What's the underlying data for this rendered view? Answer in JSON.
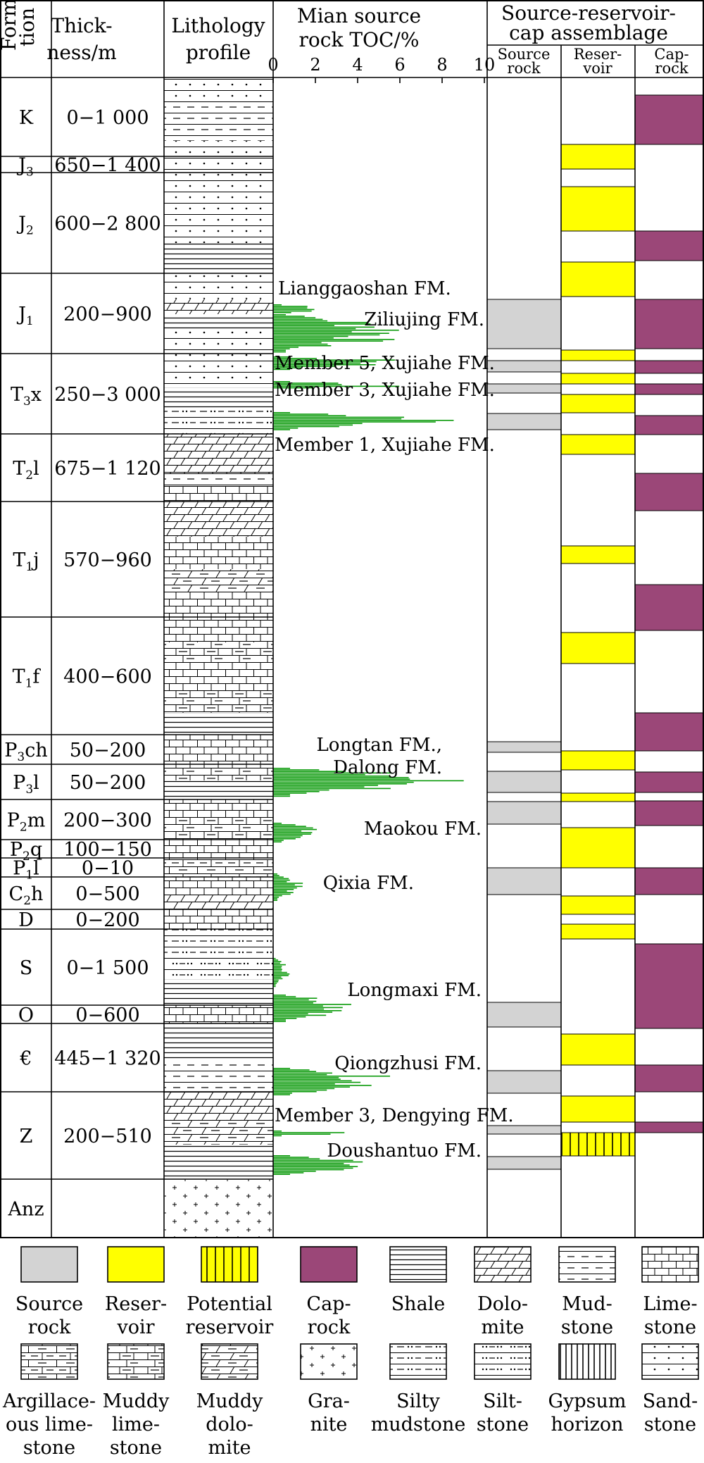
{
  "headers": {
    "formation_line1": "Forma-",
    "formation_line2": "tion",
    "thickness_line1": "Thick-",
    "thickness_line2": "ness/m",
    "lithology_line1": "Lithology",
    "lithology_line2": "profile",
    "toc_line1": "Mian source",
    "toc_line2": "rock TOC/%",
    "srca_line1": "Source-reservoir-",
    "srca_line2": "cap assemblage",
    "sub_source_1": "Source",
    "sub_source_2": "rock",
    "sub_reservoir_1": "Reser-",
    "sub_reservoir_2": "voir",
    "sub_cap_1": "Cap-",
    "sub_cap_2": "rock"
  },
  "toc_axis": {
    "ticks": [
      "0",
      "2",
      "4",
      "6",
      "8",
      "10"
    ],
    "min": 0,
    "max": 10
  },
  "formations": [
    {
      "name": "K",
      "base": "K",
      "sub": "",
      "post": "",
      "thickness": "0−1 000"
    },
    {
      "name": "J3",
      "base": "J",
      "sub": "3",
      "post": "",
      "thickness": "650−1 400"
    },
    {
      "name": "J2",
      "base": "J",
      "sub": "2",
      "post": "",
      "thickness": "600−2 800"
    },
    {
      "name": "J1",
      "base": "J",
      "sub": "1",
      "post": "",
      "thickness": "200−900"
    },
    {
      "name": "T3x",
      "base": "T",
      "sub": "3",
      "post": "x",
      "thickness": "250−3 000"
    },
    {
      "name": "T2l",
      "base": "T",
      "sub": "2",
      "post": "l",
      "thickness": "675−1 120"
    },
    {
      "name": "T1j",
      "base": "T",
      "sub": "1",
      "post": "j",
      "thickness": "570−960"
    },
    {
      "name": "T1f",
      "base": "T",
      "sub": "1",
      "post": "f",
      "thickness": "400−600"
    },
    {
      "name": "P3ch",
      "base": "P",
      "sub": "3",
      "post": "ch",
      "thickness": "50−200"
    },
    {
      "name": "P3l",
      "base": "P",
      "sub": "3",
      "post": "l",
      "thickness": "50−200"
    },
    {
      "name": "P2m",
      "base": "P",
      "sub": "2",
      "post": "m",
      "thickness": "200−300"
    },
    {
      "name": "P2q",
      "base": "P",
      "sub": "2",
      "post": "q",
      "thickness": "100−150"
    },
    {
      "name": "P1l",
      "base": "P",
      "sub": "1",
      "post": "l",
      "thickness": "0−10"
    },
    {
      "name": "C2h",
      "base": "C",
      "sub": "2",
      "post": "h",
      "thickness": "0−500"
    },
    {
      "name": "D",
      "base": "D",
      "sub": "",
      "post": "",
      "thickness": "0−200"
    },
    {
      "name": "S",
      "base": "S",
      "sub": "",
      "post": "",
      "thickness": "0−1 500"
    },
    {
      "name": "O",
      "base": "O",
      "sub": "",
      "post": "",
      "thickness": "0−600"
    },
    {
      "name": "Cambrian",
      "base": "€",
      "sub": "",
      "post": "",
      "thickness": "445−1 320"
    },
    {
      "name": "Z",
      "base": "Z",
      "sub": "",
      "post": "",
      "thickness": "200−510"
    },
    {
      "name": "Anz",
      "base": "Anz",
      "sub": "",
      "post": "",
      "thickness": ""
    }
  ],
  "toc_labels": [
    "Lianggaoshan FM.",
    "Ziliujing FM.",
    "Member 5, Xujiahe FM.",
    "Member 3, Xujiahe FM.",
    "Member 1, Xujiahe FM.",
    "Longtan FM.,",
    "Dalong FM.",
    "Maokou FM.",
    "Qixia FM.",
    "Longmaxi FM.",
    "Qiongzhusi FM.",
    "Member 3, Dengying FM.",
    "Doushantuo FM."
  ],
  "legend": [
    {
      "key": "source_rock",
      "line1": "Source",
      "line2": "rock",
      "line3": ""
    },
    {
      "key": "reservoir",
      "line1": "Reser-",
      "line2": "voir",
      "line3": ""
    },
    {
      "key": "potential_reservoir",
      "line1": "Potential",
      "line2": "reservoir",
      "line3": ""
    },
    {
      "key": "cap_rock",
      "line1": "Cap-",
      "line2": "rock",
      "line3": ""
    },
    {
      "key": "shale",
      "line1": "Shale",
      "line2": "",
      "line3": ""
    },
    {
      "key": "dolomite",
      "line1": "Dolo-",
      "line2": "mite",
      "line3": ""
    },
    {
      "key": "mudstone",
      "line1": "Mud-",
      "line2": "stone",
      "line3": ""
    },
    {
      "key": "limestone",
      "line1": "Lime-",
      "line2": "stone",
      "line3": ""
    },
    {
      "key": "argillaceous_limestone",
      "line1": "Argillace-",
      "line2": "ous lime-",
      "line3": "stone"
    },
    {
      "key": "muddy_limestone",
      "line1": "Muddy",
      "line2": "lime-",
      "line3": "stone"
    },
    {
      "key": "muddy_dolomite",
      "line1": "Muddy",
      "line2": "dolo-",
      "line3": "mite"
    },
    {
      "key": "granite",
      "line1": "Gra-",
      "line2": "nite",
      "line3": ""
    },
    {
      "key": "silty_mudstone",
      "line1": "Silty",
      "line2": "mudstone",
      "line3": ""
    },
    {
      "key": "siltstone",
      "line1": "Silt-",
      "line2": "stone",
      "line3": ""
    },
    {
      "key": "gypsum_horizon",
      "line1": "Gypsum",
      "line2": "horizon",
      "line3": ""
    },
    {
      "key": "sandstone",
      "line1": "Sand-",
      "line2": "stone",
      "line3": ""
    }
  ],
  "colors": {
    "source_rock": "#d3d3d3",
    "reservoir": "#ffff00",
    "cap_rock": "#9b4778",
    "toc_bar": "#0a9a0a"
  }
}
